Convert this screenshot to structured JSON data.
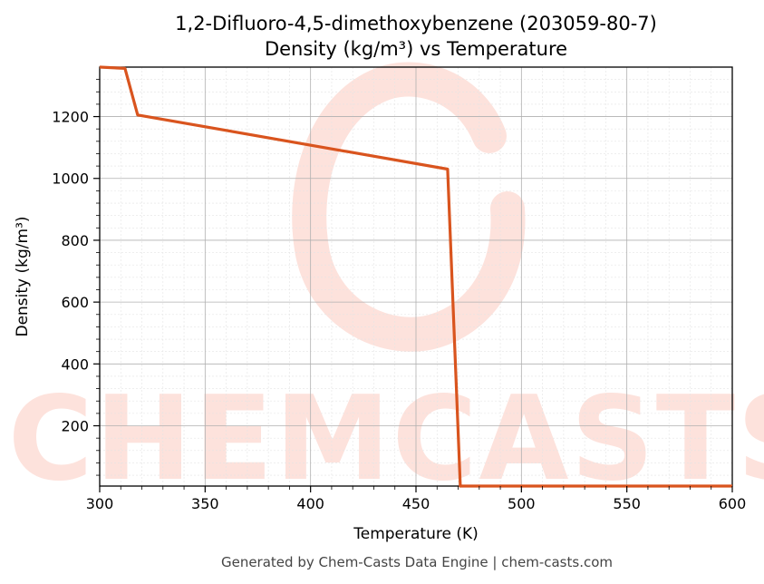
{
  "chart_data": {
    "type": "line",
    "title": "1,2-Difluoro-4,5-dimethoxybenzene (203059-80-7)",
    "subtitle": "Density (kg/m³) vs Temperature",
    "xlabel": "Temperature (K)",
    "ylabel": "Density (kg/m³)",
    "xlim": [
      300,
      600
    ],
    "ylim": [
      5,
      1360
    ],
    "x_ticks": [
      300,
      350,
      400,
      450,
      500,
      550,
      600
    ],
    "y_ticks": [
      200,
      400,
      600,
      800,
      1000,
      1200
    ],
    "grid": true,
    "legend": "none",
    "series": [
      {
        "color": "#d9541e",
        "x": [
          300,
          312,
          318,
          465,
          471,
          600
        ],
        "y": [
          1360,
          1356,
          1205,
          1030,
          5,
          5
        ]
      }
    ]
  },
  "footer": "Generated by Chem-Casts Data Engine | chem-casts.com",
  "watermark": "CHEMCASTS",
  "colors": {
    "line": "#d9541e",
    "watermark": "#fde2dc",
    "grid_major": "#b0b0b0",
    "grid_minor": "#e4e4e4"
  }
}
